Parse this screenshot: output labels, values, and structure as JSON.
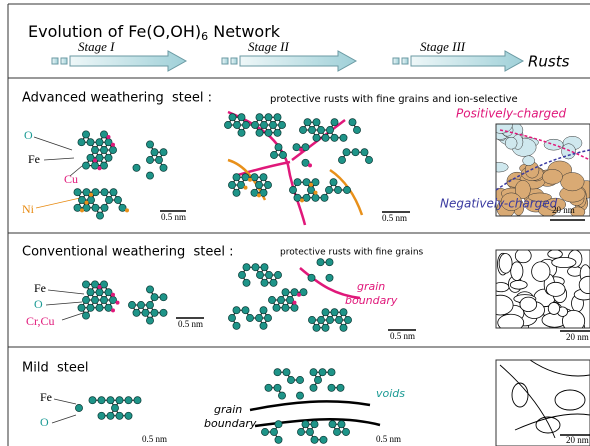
{
  "header": {
    "title": "Evolution of Fe(O,OH)",
    "title_subscript": "6",
    "title_end": " Network",
    "stages": [
      "Stage I",
      "Stage II",
      "Stage III"
    ],
    "result": "Rusts"
  },
  "sections": [
    {
      "title": "Advanced weathering  steel :",
      "description": "protective rusts with fine grains and ion-selective",
      "labels": [
        "O",
        "Fe",
        "Cu",
        "Ni"
      ],
      "annotations": [
        "Positively-charged",
        "Negatively-charged"
      ],
      "scales": [
        "0.5 nm",
        "0.5 nm",
        "20 nm"
      ]
    },
    {
      "title": "Conventional weathering  steel :",
      "description": "protective rusts with fine grains",
      "labels": [
        "Fe",
        "O",
        "Cr,Cu"
      ],
      "annotations": [
        "grain",
        "boundary"
      ],
      "scales": [
        "0.5 nm",
        "0.5 nm",
        "20 nm"
      ]
    },
    {
      "title": "Mild  steel",
      "labels": [
        "Fe",
        "O"
      ],
      "annotations": [
        "grain",
        "boundary",
        "voids"
      ],
      "scales": [
        "0.5 nm",
        "0.5 nm",
        "20 nm"
      ]
    }
  ]
}
